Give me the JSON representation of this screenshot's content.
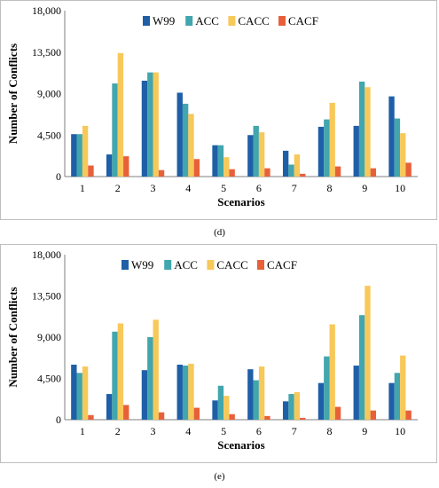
{
  "chart_data": [
    {
      "type": "bar",
      "caption": "(d)",
      "categories": [
        "1",
        "2",
        "3",
        "4",
        "5",
        "6",
        "7",
        "8",
        "9",
        "10"
      ],
      "series": [
        {
          "name": "W99",
          "values": [
            4600,
            2400,
            10400,
            9100,
            3400,
            4500,
            2800,
            5400,
            5500,
            8700
          ]
        },
        {
          "name": "ACC",
          "values": [
            4600,
            10100,
            11300,
            7900,
            3400,
            5500,
            1300,
            6200,
            10300,
            6300
          ]
        },
        {
          "name": "CACC",
          "values": [
            5500,
            13400,
            11300,
            6800,
            2100,
            4800,
            2400,
            8000,
            9700,
            4700
          ]
        },
        {
          "name": "CACF",
          "values": [
            1200,
            2200,
            700,
            1900,
            800,
            900,
            300,
            1100,
            900,
            1500
          ]
        }
      ],
      "xlabel": "Scenarios",
      "ylabel": "Number of Conflicts",
      "ylim": [
        0,
        18000
      ],
      "yticks": [
        "0",
        "4,500",
        "9,000",
        "13,500",
        "18,000"
      ],
      "legend": "top",
      "grid": false
    },
    {
      "type": "bar",
      "caption": "(e)",
      "categories": [
        "1",
        "2",
        "3",
        "4",
        "5",
        "6",
        "7",
        "8",
        "9",
        "10"
      ],
      "series": [
        {
          "name": "W99",
          "values": [
            6000,
            2800,
            5400,
            6000,
            2100,
            5500,
            2000,
            4000,
            5900,
            4000
          ]
        },
        {
          "name": "ACC",
          "values": [
            5100,
            9600,
            9000,
            5900,
            3700,
            4300,
            2800,
            6900,
            11400,
            5100
          ]
        },
        {
          "name": "CACC",
          "values": [
            5800,
            10500,
            10900,
            6100,
            2600,
            5800,
            3000,
            10400,
            14600,
            7000
          ]
        },
        {
          "name": "CACF",
          "values": [
            500,
            1600,
            800,
            1300,
            600,
            400,
            200,
            1400,
            1000,
            1000
          ]
        }
      ],
      "xlabel": "Scenarios",
      "ylabel": "Number of Conflicts",
      "ylim": [
        0,
        18000
      ],
      "yticks": [
        "0",
        "4,500",
        "9,000",
        "13,500",
        "18,000"
      ],
      "legend": "top",
      "grid": false
    }
  ],
  "colors": {
    "W99": "#1f5fa8",
    "ACC": "#41a6ad",
    "CACC": "#f7c85a",
    "CACF": "#e8603a",
    "axis": "#7f7f7f"
  }
}
